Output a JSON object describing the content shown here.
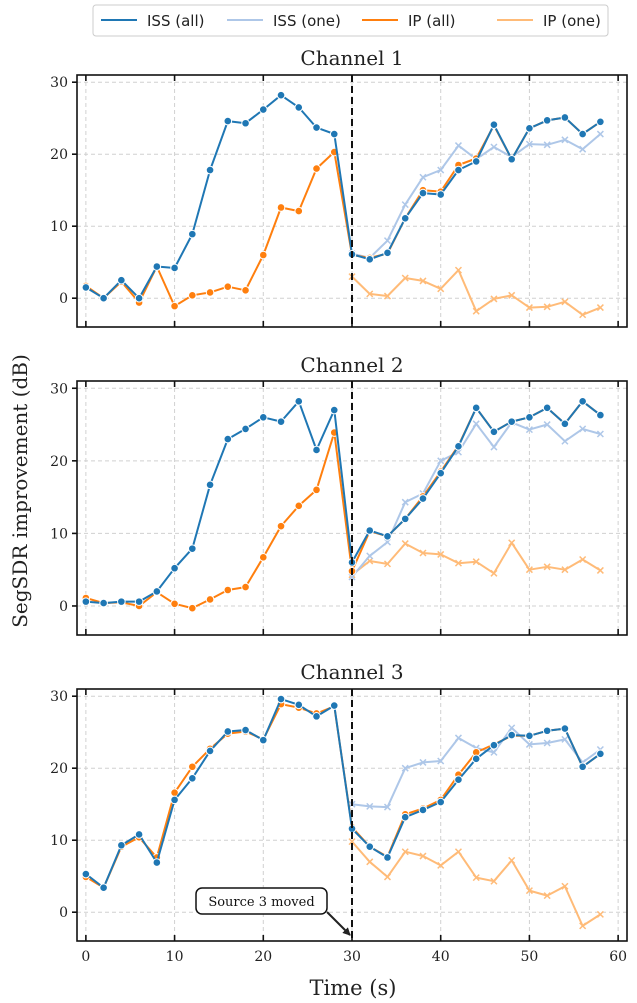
{
  "legend": {
    "placement": "top-center",
    "entries": [
      {
        "label": "ISS (all)",
        "color": "#1f77b4",
        "marker": "o"
      },
      {
        "label": "ISS (one)",
        "color": "#aec7e8",
        "marker": "x"
      },
      {
        "label": "IP (all)",
        "color": "#ff7f0e",
        "marker": "o"
      },
      {
        "label": "IP (one)",
        "color": "#ffbb78",
        "marker": "x"
      }
    ]
  },
  "figure": {
    "xlabel": "Time (s)",
    "ylabel": "SegSDR improvement (dB)"
  },
  "chart_data": [
    {
      "type": "line",
      "title": "Channel 1",
      "xlim": [
        -1,
        61
      ],
      "ylim": [
        -4,
        31
      ],
      "xticks": [
        0,
        10,
        20,
        30,
        40,
        50,
        60
      ],
      "yticks": [
        0,
        10,
        20,
        30
      ],
      "grid": true,
      "vline": {
        "x": 30,
        "style": "dashed"
      },
      "series": [
        {
          "name": "ISS (all)",
          "x": [
            0,
            2,
            4,
            6,
            8,
            10,
            12,
            14,
            16,
            18,
            20,
            22,
            24,
            26,
            28,
            30,
            32,
            34,
            36,
            38,
            40,
            42,
            44,
            46,
            48,
            50,
            52,
            54,
            56,
            58
          ],
          "values": [
            1.5,
            0,
            2.5,
            0,
            4.4,
            4.2,
            8.9,
            17.8,
            24.6,
            24.3,
            26.2,
            28.2,
            26.5,
            23.7,
            22.8,
            6.1,
            5.4,
            6.3,
            11.1,
            14.6,
            14.4,
            17.8,
            19.0,
            24.1,
            19.3,
            23.6,
            24.7,
            25.1,
            22.8,
            24.5
          ]
        },
        {
          "name": "ISS (one)",
          "x": [
            30,
            32,
            34,
            36,
            38,
            40,
            42,
            44,
            46,
            48,
            50,
            52,
            54,
            56,
            58
          ],
          "values": [
            6.2,
            5.6,
            8.0,
            13.0,
            16.8,
            17.8,
            21.2,
            19.3,
            21.0,
            19.6,
            21.4,
            21.3,
            22.0,
            20.7,
            22.8
          ]
        },
        {
          "name": "IP (all)",
          "x": [
            0,
            2,
            4,
            6,
            8,
            10,
            12,
            14,
            16,
            18,
            20,
            22,
            24,
            26,
            28,
            30,
            32,
            34,
            36,
            38,
            40,
            42,
            44,
            46,
            48,
            50,
            52,
            54,
            56,
            58
          ],
          "values": [
            1.7,
            0,
            2.3,
            -0.6,
            4.4,
            -1.1,
            0.4,
            0.8,
            1.6,
            1.1,
            6.0,
            12.6,
            12.1,
            18.0,
            20.3,
            6.0,
            5.6,
            6.2,
            11.1,
            15.0,
            14.8,
            18.5,
            19.4,
            24.0,
            19.3,
            23.6,
            24.7,
            25.1,
            22.8,
            24.5
          ]
        },
        {
          "name": "IP (one)",
          "x": [
            30,
            32,
            34,
            36,
            38,
            40,
            42,
            44,
            46,
            48,
            50,
            52,
            54,
            56,
            58
          ],
          "values": [
            3.0,
            0.6,
            0.3,
            2.8,
            2.4,
            1.3,
            3.9,
            -1.8,
            -0.1,
            0.4,
            -1.3,
            -1.2,
            -0.5,
            -2.3,
            -1.3
          ]
        }
      ]
    },
    {
      "type": "line",
      "title": "Channel 2",
      "xlim": [
        -1,
        61
      ],
      "ylim": [
        -4,
        31
      ],
      "xticks": [
        0,
        10,
        20,
        30,
        40,
        50,
        60
      ],
      "yticks": [
        0,
        10,
        20,
        30
      ],
      "grid": true,
      "vline": {
        "x": 30,
        "style": "dashed"
      },
      "series": [
        {
          "name": "ISS (all)",
          "x": [
            0,
            2,
            4,
            6,
            8,
            10,
            12,
            14,
            16,
            18,
            20,
            22,
            24,
            26,
            28,
            30,
            32,
            34,
            36,
            38,
            40,
            42,
            44,
            46,
            48,
            50,
            52,
            54,
            56,
            58
          ],
          "values": [
            0.6,
            0.4,
            0.6,
            0.6,
            2.0,
            5.2,
            7.9,
            16.7,
            23.0,
            24.4,
            26.0,
            25.4,
            28.2,
            21.5,
            27.0,
            6.0,
            10.4,
            9.6,
            12.0,
            14.8,
            18.3,
            22.0,
            27.3,
            24.0,
            25.4,
            26.0,
            27.3,
            25.1,
            28.2,
            26.3
          ]
        },
        {
          "name": "ISS (one)",
          "x": [
            30,
            32,
            34,
            36,
            38,
            40,
            42,
            44,
            46,
            48,
            50,
            52,
            54,
            56,
            58
          ],
          "values": [
            4.0,
            6.9,
            8.8,
            14.3,
            15.5,
            20.0,
            21.2,
            25.1,
            21.9,
            25.3,
            24.3,
            25.0,
            22.7,
            24.4,
            23.7
          ]
        },
        {
          "name": "IP (all)",
          "x": [
            0,
            2,
            4,
            6,
            8,
            10,
            12,
            14,
            16,
            18,
            20,
            22,
            24,
            26,
            28,
            30,
            32,
            34,
            36,
            38,
            40,
            42,
            44,
            46,
            48,
            50,
            52,
            54,
            56,
            58
          ],
          "values": [
            1.1,
            0.4,
            0.5,
            0.0,
            1.9,
            0.3,
            -0.3,
            0.9,
            2.2,
            2.6,
            6.7,
            11.0,
            13.8,
            16.0,
            23.9,
            4.8,
            10.3,
            9.6,
            12.0,
            15.1,
            18.5,
            22.1,
            27.3,
            24.0,
            25.4,
            26.0,
            27.3,
            25.1,
            28.2,
            26.3
          ]
        },
        {
          "name": "IP (one)",
          "x": [
            30,
            32,
            34,
            36,
            38,
            40,
            42,
            44,
            46,
            48,
            50,
            52,
            54,
            56,
            58
          ],
          "values": [
            4.3,
            6.2,
            5.8,
            8.6,
            7.3,
            7.1,
            5.9,
            6.1,
            4.5,
            8.7,
            5.0,
            5.4,
            5.0,
            6.4,
            4.9
          ]
        }
      ]
    },
    {
      "type": "line",
      "title": "Channel 3",
      "xlim": [
        -1,
        61
      ],
      "ylim": [
        -4,
        31
      ],
      "xticks": [
        0,
        10,
        20,
        30,
        40,
        50,
        60
      ],
      "yticks": [
        0,
        10,
        20,
        30
      ],
      "grid": true,
      "vline": {
        "x": 30,
        "style": "dashed"
      },
      "annotation": {
        "text": "Source 3 moved",
        "x": 30,
        "y": -1.8
      },
      "series": [
        {
          "name": "ISS (all)",
          "x": [
            0,
            2,
            4,
            6,
            8,
            10,
            12,
            14,
            16,
            18,
            20,
            22,
            24,
            26,
            28,
            30,
            32,
            34,
            36,
            38,
            40,
            42,
            44,
            46,
            48,
            50,
            52,
            54,
            56,
            58
          ],
          "values": [
            5.3,
            3.4,
            9.3,
            10.8,
            6.9,
            15.6,
            18.6,
            22.4,
            25.1,
            25.3,
            23.9,
            29.6,
            28.8,
            27.2,
            28.7,
            11.6,
            9.1,
            7.6,
            13.2,
            14.2,
            15.3,
            18.4,
            21.3,
            23.2,
            24.6,
            24.5,
            25.2,
            25.5,
            20.2,
            22.0
          ]
        },
        {
          "name": "ISS (one)",
          "x": [
            30,
            32,
            34,
            36,
            38,
            40,
            42,
            44,
            46,
            48,
            50,
            52,
            54,
            56,
            58
          ],
          "values": [
            15.0,
            14.7,
            14.6,
            20.0,
            20.8,
            21.0,
            24.2,
            22.8,
            22.2,
            25.6,
            23.3,
            23.5,
            24.0,
            20.8,
            22.6
          ]
        },
        {
          "name": "IP (all)",
          "x": [
            0,
            2,
            4,
            6,
            8,
            10,
            12,
            14,
            16,
            18,
            20,
            22,
            24,
            26,
            28,
            30,
            32,
            34,
            36,
            38,
            40,
            42,
            44,
            46,
            48,
            50,
            52,
            54,
            56,
            58
          ],
          "values": [
            4.9,
            3.4,
            9.1,
            10.4,
            7.6,
            16.6,
            20.2,
            22.7,
            24.8,
            25.1,
            24.0,
            28.9,
            28.4,
            27.6,
            28.6,
            11.8,
            9.1,
            7.7,
            13.6,
            14.4,
            15.6,
            19.1,
            22.2,
            23.3,
            24.5,
            24.5,
            25.2,
            25.5,
            20.2,
            22.0
          ]
        },
        {
          "name": "IP (one)",
          "x": [
            30,
            32,
            34,
            36,
            38,
            40,
            42,
            44,
            46,
            48,
            50,
            52,
            54,
            56,
            58
          ],
          "values": [
            9.8,
            7.0,
            4.9,
            8.4,
            7.8,
            6.5,
            8.4,
            4.8,
            4.3,
            7.2,
            3.0,
            2.3,
            3.6,
            -1.9,
            -0.3
          ]
        }
      ]
    }
  ]
}
